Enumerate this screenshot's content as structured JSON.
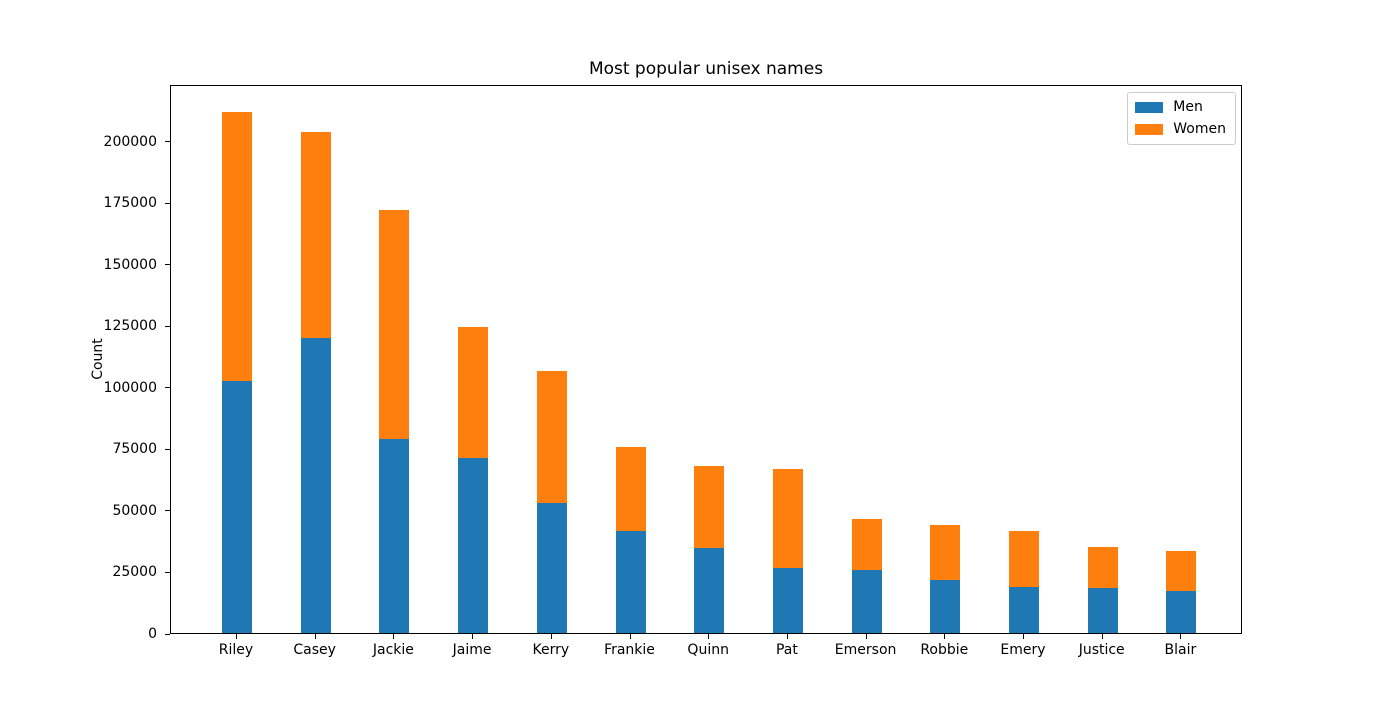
{
  "chart_data": {
    "type": "bar",
    "stacked": true,
    "title": "Most popular unisex names",
    "xlabel": "",
    "ylabel": "Count",
    "categories": [
      "Riley",
      "Casey",
      "Jackie",
      "Jaime",
      "Kerry",
      "Frankie",
      "Quinn",
      "Pat",
      "Emerson",
      "Robbie",
      "Emery",
      "Justice",
      "Blair"
    ],
    "series": [
      {
        "name": "Men",
        "color": "#1f77b4",
        "values": [
          102500,
          120000,
          79000,
          71000,
          53000,
          41500,
          34500,
          26500,
          25500,
          21500,
          18500,
          18200,
          17000
        ]
      },
      {
        "name": "Women",
        "color": "#ff7f0e",
        "values": [
          109000,
          83500,
          93000,
          53500,
          53500,
          34000,
          33300,
          40000,
          21000,
          22500,
          22800,
          16800,
          16200
        ]
      }
    ],
    "ylim": [
      0,
      223000
    ],
    "yticks": [
      0,
      25000,
      50000,
      75000,
      100000,
      125000,
      150000,
      175000,
      200000
    ],
    "grid": false,
    "legend_position": "upper right",
    "axis_color": "#000000",
    "background_color": "#ffffff"
  }
}
